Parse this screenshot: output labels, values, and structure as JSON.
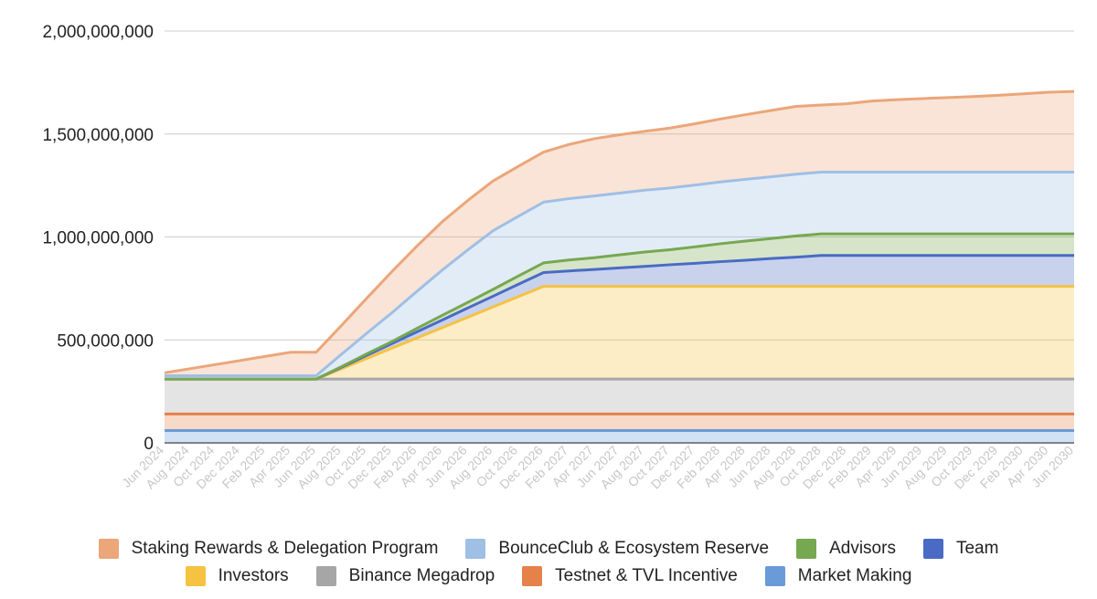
{
  "chart_data": {
    "type": "area",
    "stacked": true,
    "ylim": [
      0,
      2000000000
    ],
    "yticks": [
      "0",
      "500,000,000",
      "1,000,000,000",
      "1,500,000,000",
      "2,000,000,000"
    ],
    "grid": true,
    "legend_position": "bottom",
    "x": [
      "Jun 2024",
      "Aug 2024",
      "Oct 2024",
      "Dec 2024",
      "Feb 2025",
      "Apr 2025",
      "Jun 2025",
      "Aug 2025",
      "Oct 2025",
      "Dec 2025",
      "Feb 2026",
      "Apr 2026",
      "Jun 2026",
      "Aug 2026",
      "Oct 2026",
      "Dec 2026",
      "Feb 2027",
      "Apr 2027",
      "Jun 2027",
      "Aug 2027",
      "Oct 2027",
      "Dec 2027",
      "Feb 2028",
      "Apr 2028",
      "Jun 2028",
      "Aug 2028",
      "Oct 2028",
      "Dec 2028",
      "Feb 2029",
      "Apr 2029",
      "Jun 2029",
      "Aug 2029",
      "Oct 2029",
      "Dec 2029",
      "Feb 2030",
      "Apr 2030",
      "Jun 2030"
    ],
    "series": [
      {
        "name": "Market Making",
        "color": "#6a9bd8",
        "values": [
          60000000,
          60000000,
          60000000,
          60000000,
          60000000,
          60000000,
          60000000,
          60000000,
          60000000,
          60000000,
          60000000,
          60000000,
          60000000,
          60000000,
          60000000,
          60000000,
          60000000,
          60000000,
          60000000,
          60000000,
          60000000,
          60000000,
          60000000,
          60000000,
          60000000,
          60000000,
          60000000,
          60000000,
          60000000,
          60000000,
          60000000,
          60000000,
          60000000,
          60000000,
          60000000,
          60000000,
          60000000
        ]
      },
      {
        "name": "Testnet & TVL Incentive",
        "color": "#e4824a",
        "values": [
          80000000,
          80000000,
          80000000,
          80000000,
          80000000,
          80000000,
          80000000,
          80000000,
          80000000,
          80000000,
          80000000,
          80000000,
          80000000,
          80000000,
          80000000,
          80000000,
          80000000,
          80000000,
          80000000,
          80000000,
          80000000,
          80000000,
          80000000,
          80000000,
          80000000,
          80000000,
          80000000,
          80000000,
          80000000,
          80000000,
          80000000,
          80000000,
          80000000,
          80000000,
          80000000,
          80000000,
          80000000
        ]
      },
      {
        "name": "Binance Megadrop",
        "color": "#a6a6a6",
        "values": [
          170000000,
          170000000,
          170000000,
          170000000,
          170000000,
          170000000,
          170000000,
          170000000,
          170000000,
          170000000,
          170000000,
          170000000,
          170000000,
          170000000,
          170000000,
          170000000,
          170000000,
          170000000,
          170000000,
          170000000,
          170000000,
          170000000,
          170000000,
          170000000,
          170000000,
          170000000,
          170000000,
          170000000,
          170000000,
          170000000,
          170000000,
          170000000,
          170000000,
          170000000,
          170000000,
          170000000,
          170000000
        ]
      },
      {
        "name": "Investors",
        "color": "#f5c242",
        "values": [
          0,
          0,
          0,
          0,
          0,
          0,
          0,
          50000000,
          100000000,
          150000000,
          200000000,
          250000000,
          300000000,
          350000000,
          400000000,
          450000000,
          450000000,
          450000000,
          450000000,
          450000000,
          450000000,
          450000000,
          450000000,
          450000000,
          450000000,
          450000000,
          450000000,
          450000000,
          450000000,
          450000000,
          450000000,
          450000000,
          450000000,
          450000000,
          450000000,
          450000000,
          450000000
        ]
      },
      {
        "name": "Team",
        "color": "#4a6bc4",
        "values": [
          0,
          0,
          0,
          0,
          0,
          0,
          0,
          7000000,
          15000000,
          22000000,
          30000000,
          37000000,
          45000000,
          52000000,
          60000000,
          67000000,
          75000000,
          82000000,
          90000000,
          97000000,
          105000000,
          112000000,
          120000000,
          127000000,
          135000000,
          142000000,
          150000000,
          150000000,
          150000000,
          150000000,
          150000000,
          150000000,
          150000000,
          150000000,
          150000000,
          150000000,
          150000000
        ]
      },
      {
        "name": "Advisors",
        "color": "#76a850",
        "values": [
          0,
          0,
          0,
          0,
          0,
          0,
          0,
          3000000,
          7000000,
          10000000,
          17000000,
          23000000,
          27000000,
          33000000,
          40000000,
          47000000,
          53000000,
          57000000,
          63000000,
          70000000,
          73000000,
          80000000,
          87000000,
          93000000,
          97000000,
          103000000,
          105000000,
          105000000,
          105000000,
          105000000,
          105000000,
          105000000,
          105000000,
          105000000,
          105000000,
          105000000,
          105000000
        ]
      },
      {
        "name": "BounceClub & Ecosystem Reserve",
        "color": "#9fbfe4",
        "values": [
          16000000,
          16000000,
          16000000,
          16000000,
          16000000,
          16000000,
          16000000,
          60000000,
          100000000,
          140000000,
          180000000,
          220000000,
          255000000,
          285000000,
          290000000,
          295000000,
          298000000,
          300000000,
          300000000,
          300000000,
          300000000,
          300000000,
          300000000,
          300000000,
          300000000,
          300000000,
          300000000,
          300000000,
          300000000,
          300000000,
          300000000,
          300000000,
          300000000,
          300000000,
          300000000,
          300000000,
          300000000
        ]
      },
      {
        "name": "Staking Rewards & Delegation Program",
        "color": "#eba679",
        "values": [
          14000000,
          34000000,
          54000000,
          74000000,
          94000000,
          114000000,
          114000000,
          140000000,
          170000000,
          200000000,
          220000000,
          235000000,
          240000000,
          242000000,
          243000000,
          243000000,
          263000000,
          278000000,
          283000000,
          286000000,
          291000000,
          298000000,
          306000000,
          314000000,
          322000000,
          329000000,
          326000000,
          332000000,
          345000000,
          352000000,
          357000000,
          362000000,
          367000000,
          373000000,
          380000000,
          388000000,
          392000000
        ]
      }
    ]
  },
  "legend": [
    [
      "Staking Rewards & Delegation Program",
      "BounceClub & Ecosystem Reserve",
      "Advisors",
      "Team"
    ],
    [
      "Investors",
      "Binance Megadrop",
      "Testnet & TVL Incentive",
      "Market Making"
    ]
  ]
}
